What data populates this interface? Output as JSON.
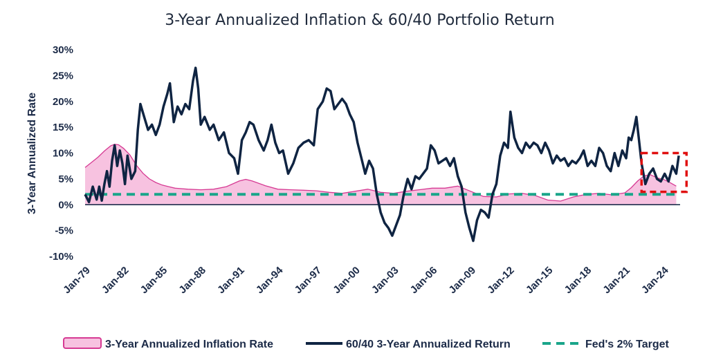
{
  "colors": {
    "inflation_fill": "#f7c2e0",
    "inflation_line": "#d63a93",
    "portfolio_line": "#0f2442",
    "target_line": "#1aa58a",
    "highlight_box": "#e01010",
    "zero_axis": "#0f2442"
  },
  "chart_data": {
    "type": "line",
    "title": "3-Year Annualized Inflation & 60/40 Portfolio Return",
    "xlabel": "",
    "ylabel": "3-Year Annualized Rate",
    "xlim": [
      1979.0,
      2025.3
    ],
    "ylim": [
      -10,
      30
    ],
    "y_ticks": [
      -10,
      -5,
      0,
      5,
      10,
      15,
      20,
      25,
      30
    ],
    "y_tick_labels": [
      "-10%",
      "-5%",
      "0%",
      "5%",
      "10%",
      "15%",
      "20%",
      "25%",
      "30%"
    ],
    "x_tick_positions": [
      1979,
      1982,
      1985,
      1988,
      1991,
      1994,
      1997,
      2000,
      2003,
      2006,
      2009,
      2012,
      2015,
      2018,
      2021,
      2024
    ],
    "x_tick_labels": [
      "Jan-79",
      "Jan-82",
      "Jan-85",
      "Jan-88",
      "Jan-91",
      "Jan-94",
      "Jan-97",
      "Jan-00",
      "Jan-03",
      "Jan-06",
      "Jan-09",
      "Jan-12",
      "Jan-15",
      "Jan-18",
      "Jan-21",
      "Jan-24"
    ],
    "grid": false,
    "legend_position": "bottom",
    "series": [
      {
        "name": "3-Year Annualized Inflation Rate",
        "style": "area",
        "x": [
          1979.0,
          1979.5,
          1980.0,
          1980.5,
          1981.0,
          1981.3,
          1981.6,
          1982.0,
          1982.5,
          1983.0,
          1983.5,
          1984.0,
          1984.5,
          1985.0,
          1985.5,
          1986.0,
          1987.0,
          1988.0,
          1989.0,
          1990.0,
          1991.0,
          1991.5,
          1992.0,
          1993.0,
          1994.0,
          1995.0,
          1996.0,
          1997.0,
          1998.0,
          1999.0,
          2000.0,
          2001.0,
          2002.0,
          2003.0,
          2004.0,
          2005.0,
          2006.0,
          2007.0,
          2008.0,
          2009.0,
          2010.0,
          2011.0,
          2012.0,
          2013.0,
          2014.0,
          2015.0,
          2016.0,
          2017.0,
          2018.0,
          2019.0,
          2020.0,
          2021.0,
          2021.5,
          2022.0,
          2022.5,
          2023.0,
          2023.5,
          2024.0,
          2024.5,
          2025.0
        ],
        "values": [
          7.2,
          8.2,
          9.2,
          10.4,
          11.4,
          11.7,
          11.6,
          10.9,
          9.6,
          7.6,
          6.1,
          5.0,
          4.3,
          3.8,
          3.5,
          3.2,
          3.0,
          2.9,
          3.0,
          3.5,
          4.6,
          4.9,
          4.6,
          3.7,
          3.0,
          2.9,
          2.8,
          2.7,
          2.4,
          2.2,
          2.6,
          3.0,
          2.4,
          2.2,
          2.6,
          2.9,
          3.2,
          3.2,
          3.6,
          2.6,
          1.6,
          1.5,
          2.1,
          2.2,
          1.8,
          0.9,
          0.7,
          1.5,
          2.0,
          2.2,
          1.9,
          2.3,
          3.3,
          4.6,
          5.6,
          5.8,
          5.2,
          4.9,
          4.3,
          3.6
        ]
      },
      {
        "name": "60/40 3-Year Annualized Return",
        "style": "line",
        "x": [
          1979.0,
          1979.3,
          1979.6,
          1979.9,
          1980.1,
          1980.3,
          1980.5,
          1980.7,
          1980.9,
          1981.1,
          1981.3,
          1981.5,
          1981.7,
          1981.9,
          1982.1,
          1982.3,
          1982.6,
          1982.9,
          1983.1,
          1983.3,
          1983.6,
          1983.9,
          1984.2,
          1984.5,
          1984.8,
          1985.1,
          1985.4,
          1985.6,
          1985.9,
          1986.2,
          1986.5,
          1986.8,
          1987.1,
          1987.4,
          1987.6,
          1987.8,
          1988.0,
          1988.3,
          1988.7,
          1989.0,
          1989.4,
          1989.8,
          1990.2,
          1990.6,
          1990.9,
          1991.2,
          1991.5,
          1991.8,
          1992.1,
          1992.5,
          1992.9,
          1993.2,
          1993.5,
          1993.8,
          1994.1,
          1994.4,
          1994.8,
          1995.2,
          1995.6,
          1996.0,
          1996.4,
          1996.8,
          1997.1,
          1997.5,
          1997.8,
          1998.1,
          1998.4,
          1998.7,
          1999.0,
          1999.3,
          1999.6,
          1999.9,
          2000.2,
          2000.5,
          2000.8,
          2001.1,
          2001.4,
          2001.7,
          2002.0,
          2002.3,
          2002.6,
          2002.9,
          2003.2,
          2003.5,
          2003.8,
          2004.1,
          2004.4,
          2004.7,
          2005.0,
          2005.3,
          2005.6,
          2005.9,
          2006.2,
          2006.5,
          2006.8,
          2007.1,
          2007.4,
          2007.7,
          2008.0,
          2008.3,
          2008.6,
          2008.9,
          2009.2,
          2009.5,
          2009.8,
          2010.1,
          2010.4,
          2010.7,
          2011.0,
          2011.3,
          2011.6,
          2011.9,
          2012.1,
          2012.4,
          2012.7,
          2013.0,
          2013.3,
          2013.6,
          2013.9,
          2014.2,
          2014.5,
          2014.8,
          2015.1,
          2015.4,
          2015.7,
          2016.0,
          2016.3,
          2016.6,
          2016.9,
          2017.2,
          2017.5,
          2017.8,
          2018.1,
          2018.4,
          2018.7,
          2019.0,
          2019.3,
          2019.6,
          2019.9,
          2020.2,
          2020.5,
          2020.8,
          2021.1,
          2021.3,
          2021.5,
          2021.7,
          2021.9,
          2022.1,
          2022.3,
          2022.6,
          2022.9,
          2023.2,
          2023.5,
          2023.8,
          2024.1,
          2024.4,
          2024.7,
          2025.0,
          2025.2
        ],
        "values": [
          2.0,
          0.5,
          3.5,
          1.0,
          3.5,
          0.8,
          4.0,
          6.5,
          3.5,
          8.5,
          11.5,
          7.5,
          10.5,
          8.0,
          4.0,
          9.5,
          5.0,
          6.5,
          14.5,
          19.5,
          17.0,
          14.5,
          15.5,
          13.5,
          15.5,
          19.0,
          21.5,
          23.5,
          16.0,
          19.0,
          17.5,
          19.5,
          18.5,
          24.0,
          26.5,
          22.5,
          15.5,
          17.0,
          14.5,
          15.5,
          12.5,
          14.0,
          10.0,
          9.0,
          6.0,
          12.5,
          14.0,
          16.0,
          15.5,
          12.5,
          10.5,
          12.5,
          15.5,
          12.0,
          10.0,
          10.5,
          6.0,
          8.0,
          11.0,
          12.0,
          12.5,
          11.5,
          18.5,
          20.0,
          22.5,
          22.0,
          18.5,
          19.5,
          20.5,
          19.5,
          17.5,
          16.0,
          12.0,
          9.0,
          6.0,
          8.5,
          7.0,
          2.0,
          -1.5,
          -3.5,
          -4.5,
          -6.0,
          -4.0,
          -2.0,
          2.0,
          5.0,
          3.0,
          5.5,
          5.0,
          6.0,
          7.0,
          11.5,
          10.5,
          8.0,
          8.5,
          9.0,
          7.5,
          9.0,
          5.5,
          3.5,
          -1.5,
          -4.5,
          -7.0,
          -3.0,
          -1.0,
          -1.5,
          -2.5,
          2.0,
          4.0,
          9.5,
          12.0,
          11.0,
          18.0,
          13.0,
          11.0,
          10.0,
          12.0,
          11.0,
          12.0,
          11.5,
          10.0,
          12.0,
          10.5,
          8.0,
          9.5,
          8.5,
          9.0,
          7.5,
          8.5,
          8.0,
          9.0,
          10.5,
          7.5,
          8.5,
          7.5,
          11.0,
          10.0,
          7.5,
          6.5,
          10.0,
          7.5,
          10.5,
          9.0,
          13.0,
          12.5,
          14.5,
          17.0,
          12.5,
          8.0,
          4.0,
          6.0,
          7.0,
          5.0,
          4.5,
          6.0,
          4.5,
          7.5,
          6.0,
          9.5
        ]
      },
      {
        "name": "Fed's 2% Target",
        "style": "dashed",
        "x": [
          1979.0,
          2025.3
        ],
        "values": [
          2,
          2
        ]
      }
    ],
    "annotations": [
      {
        "type": "highlight-box",
        "x_range": [
          2022.3,
          2025.8
        ],
        "y_range": [
          2.5,
          10
        ]
      }
    ]
  }
}
